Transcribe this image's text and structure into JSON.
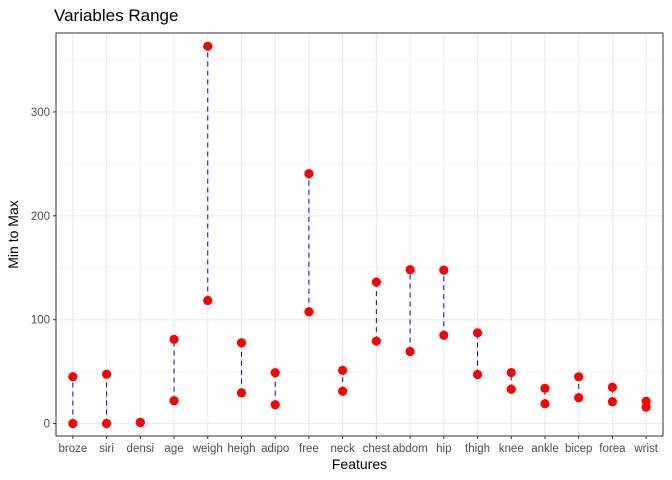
{
  "chart_data": {
    "type": "dumbbell",
    "title": "Variables Range",
    "xlabel": "Features",
    "ylabel": "Min to Max",
    "ylim": [
      -12,
      376
    ],
    "yticks": [
      0,
      100,
      200,
      300
    ],
    "grid": true,
    "colors": {
      "point": "#ff0000",
      "segment": "#0000ff",
      "grid": "#ebebeb",
      "border": "#333333"
    },
    "categories": [
      "broze",
      "siri",
      "densi",
      "age",
      "weigh",
      "heigh",
      "adipo",
      "free",
      "neck",
      "chest",
      "abdom",
      "hip",
      "thigh",
      "knee",
      "ankle",
      "bicep",
      "forea",
      "wrist"
    ],
    "min": [
      0,
      0,
      1,
      22,
      118.5,
      29.5,
      18.1,
      107.6,
      31.1,
      79.3,
      69.4,
      85,
      47.2,
      33,
      19.1,
      24.8,
      21,
      15.8
    ],
    "max": [
      45.1,
      47.5,
      1.1,
      81,
      363.2,
      77.75,
      48.9,
      240.5,
      51.2,
      136.2,
      148.1,
      147.7,
      87.3,
      49.1,
      33.9,
      45,
      34.9,
      21.4
    ]
  }
}
